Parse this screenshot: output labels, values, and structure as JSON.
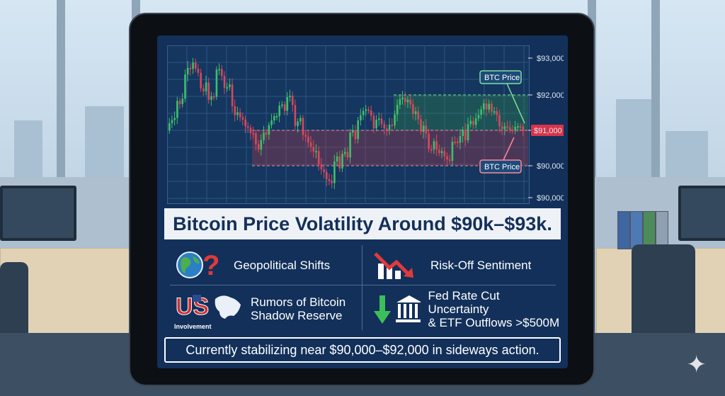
{
  "chart": {
    "y_ticks": [
      "$93,000",
      "$92,000",
      "$91,000",
      "$90,000",
      "$90,000"
    ],
    "callout_upper": "BTC Price",
    "callout_lower": "BTC Price",
    "colors": {
      "bull": "#3fbf6a",
      "bear": "#d8485a",
      "upper_band": "#2f8a4a",
      "lower_band": "#b0384a"
    },
    "chart_data": {
      "type": "candlestick",
      "y_axis_labels": [
        "$93,000",
        "$92,000",
        "$91,000",
        "$90,000",
        "$90,000"
      ],
      "annotations": [
        "BTC Price",
        "BTC Price"
      ],
      "current_price_label": "$91,000"
    }
  },
  "title": "Bitcoin Price Volatility Around $90k–$93k.",
  "factors": {
    "geopolitical": "Geopolitical Shifts",
    "risk_off": "Risk-Off Sentiment",
    "rumors_line1": "Rumors of Bitcoin",
    "rumors_line2": "Shadow Reserve",
    "us_label": "US",
    "involvement": "Involvement",
    "fed_line1": "Fed Rate Cut Uncertainty",
    "fed_line2": "& ETF Outflows >$500M"
  },
  "footer": "Currently stabilizing near $90,000–$92,000 in sideways action."
}
